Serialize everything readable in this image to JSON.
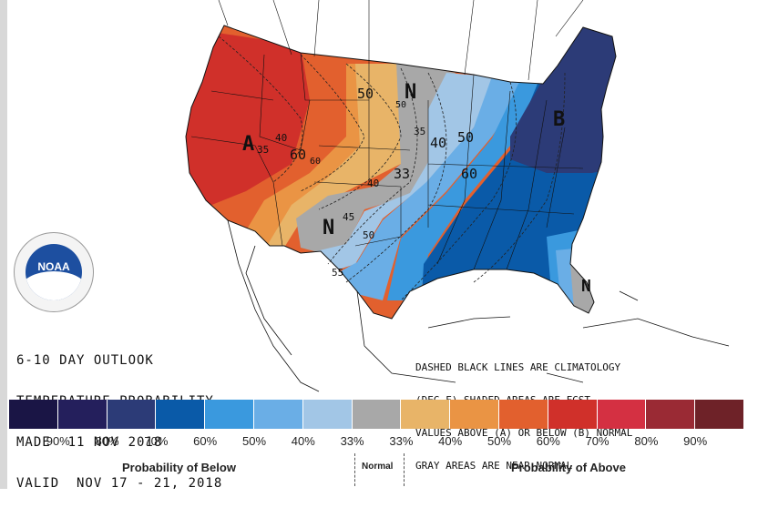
{
  "title_block": {
    "line1": "6-10 DAY OUTLOOK",
    "line2": "TEMPERATURE PROBABILITY",
    "line3": "MADE  11 NOV 2018",
    "line4": "VALID  NOV 17 - 21, 2018"
  },
  "note_block": {
    "line1": "DASHED BLACK LINES ARE CLIMATOLOGY",
    "line2": "(DEG F) SHADED AREAS ARE FCST",
    "line3": "VALUES ABOVE (A) OR BELOW (B) NORMAL",
    "line4": "GRAY AREAS ARE NEAR-NORMAL"
  },
  "logo": {
    "text": "NOAA"
  },
  "map_labels": {
    "above": "A",
    "below": "B",
    "normal_north": "N",
    "normal_south": "N",
    "normal_florida": "N"
  },
  "contour_labels": [
    "50",
    "60",
    "40",
    "35",
    "50",
    "60",
    "33",
    "40",
    "40",
    "45",
    "50",
    "55",
    "35",
    "50",
    "60"
  ],
  "legend": {
    "colors": [
      "#1a1545",
      "#241f5c",
      "#2c3b77",
      "#0a5aa8",
      "#3a99de",
      "#6aaee6",
      "#a2c6e6",
      "#a8a8a8",
      "#e8b468",
      "#ea9444",
      "#e2602e",
      "#d0302a",
      "#d43042",
      "#9a2a34",
      "#6e2228"
    ],
    "tick_labels": [
      "90%",
      "80%",
      "70%",
      "60%",
      "50%",
      "40%",
      "33%",
      "33%",
      "40%",
      "50%",
      "60%",
      "70%",
      "80%",
      "90%"
    ],
    "below_caption": "Probability of Below",
    "normal_caption": "Normal",
    "above_caption": "Probability of Above"
  },
  "region_colors": {
    "above_40": "#e8b468",
    "above_50": "#ea9444",
    "above_60": "#e2602e",
    "above_70": "#d0302a",
    "normal": "#a8a8a8",
    "below_40": "#a2c6e6",
    "below_50": "#6aaee6",
    "below_60": "#3a99de",
    "below_70": "#0a5aa8",
    "below_80": "#2c3b77"
  }
}
